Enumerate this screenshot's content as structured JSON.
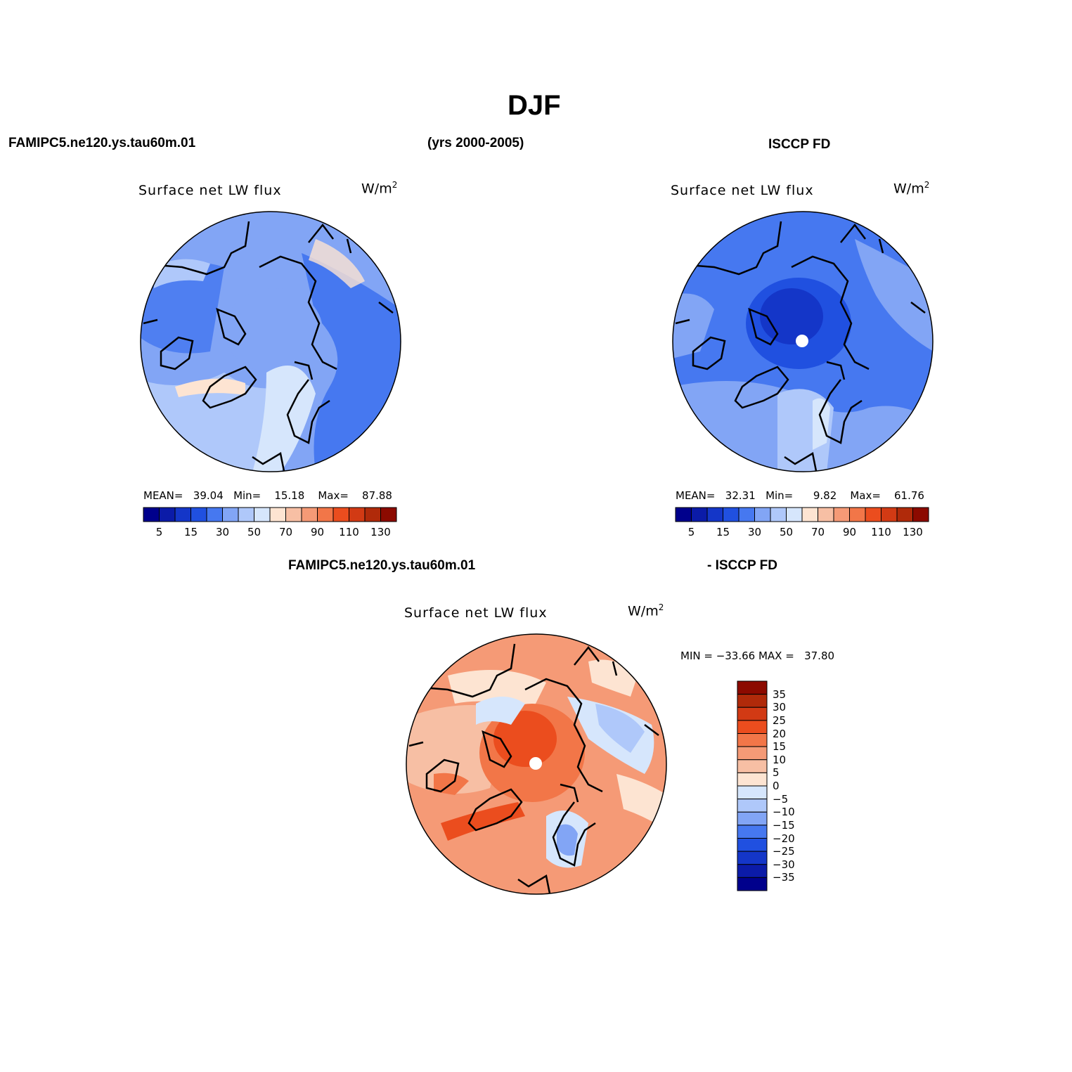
{
  "figure": {
    "title": "DJF",
    "case_name": "FAMIPC5.ne120.ys.tau60m.01",
    "years": "(yrs 2000-2005)",
    "obs_name": "ISCCP FD",
    "diff_case": "FAMIPC5.ne120.ys.tau60m.01",
    "diff_obs": "- ISCCP FD"
  },
  "colors": {
    "seq": [
      "#00008c",
      "#0b1ba8",
      "#1436c8",
      "#2050e0",
      "#4678f0",
      "#82a5f5",
      "#afc8fa",
      "#d6e6fc",
      "#fde4d2",
      "#f7bfa4",
      "#f59a76",
      "#f27648",
      "#eb4d1e",
      "#d23a14",
      "#b02a0a",
      "#8c0a00"
    ],
    "diff": [
      "#00008c",
      "#0b1ba8",
      "#1436c8",
      "#2050e0",
      "#4678f0",
      "#82a5f5",
      "#afc8fa",
      "#d6e6fc",
      "#fde4d2",
      "#f7bfa4",
      "#f59a76",
      "#f27648",
      "#eb4d1e",
      "#d23a14",
      "#b02a0a",
      "#8c0a00"
    ]
  },
  "panels": [
    {
      "id": "model",
      "variable": "Surface net LW flux",
      "units": "W/m",
      "units_sup": "2",
      "mean_label": "MEAN=",
      "mean": "39.04",
      "min_label": "Min=",
      "min": "15.18",
      "max_label": "Max=",
      "max": "87.88",
      "colorbar_ticks": [
        "5",
        "15",
        "30",
        "50",
        "70",
        "90",
        "110",
        "130"
      ]
    },
    {
      "id": "obs",
      "variable": "Surface net LW flux",
      "units": "W/m",
      "units_sup": "2",
      "mean_label": "MEAN=",
      "mean": "32.31",
      "min_label": "Min=",
      "min": "9.82",
      "max_label": "Max=",
      "max": "61.76",
      "colorbar_ticks": [
        "5",
        "15",
        "30",
        "50",
        "70",
        "90",
        "110",
        "130"
      ]
    },
    {
      "id": "diff",
      "variable": "Surface net LW flux",
      "units": "W/m",
      "units_sup": "2",
      "minmax_text": "MIN = −33.66 MAX =   37.80",
      "colorbar_ticks": [
        "35",
        "30",
        "25",
        "20",
        "15",
        "10",
        "5",
        "0",
        "−5",
        "−10",
        "−15",
        "−20",
        "−25",
        "−30",
        "−35"
      ]
    }
  ]
}
